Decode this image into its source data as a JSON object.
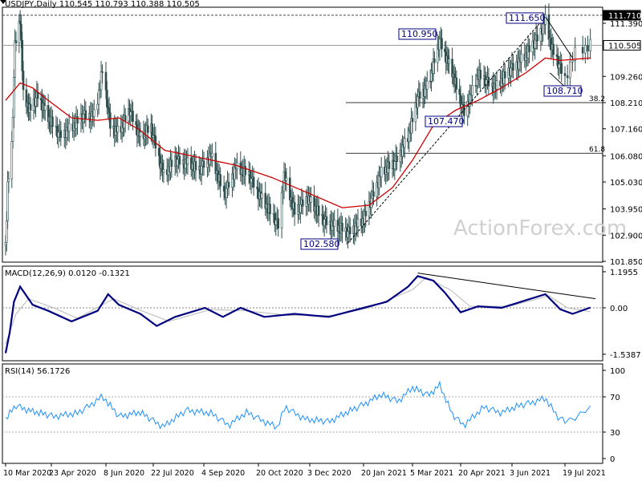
{
  "chart_data": [
    {
      "type": "candlestick",
      "header": "USDJPY,Daily  110.545 110.793 110.388 110.505",
      "symbol": "USDJPY",
      "timeframe": "Daily",
      "ohlc": {
        "open": 110.545,
        "high": 110.793,
        "low": 110.388,
        "close": 110.505
      },
      "current_price_label": "110.505",
      "ylim": [
        101.85,
        112.0
      ],
      "y_ticks": [
        "111.390",
        "110.505",
        "109.260",
        "108.210",
        "107.160",
        "106.080",
        "105.030",
        "103.950",
        "102.900",
        "101.850"
      ],
      "x_ticks": [
        "10 Mar 2020",
        "23 Apr 2020",
        "8 Jun 2020",
        "22 Jul 2020",
        "4 Sep 2020",
        "20 Oct 2020",
        "3 Dec 2020",
        "20 Jan 2021",
        "5 Mar 2021",
        "20 Apr 2021",
        "3 Jun 2021",
        "19 Jul 2021"
      ],
      "x_tick_dates": [
        "2020-03-10",
        "2020-04-23",
        "2020-06-08",
        "2020-07-22",
        "2020-09-04",
        "2020-10-20",
        "2020-12-03",
        "2021-01-20",
        "2021-03-05",
        "2021-04-20",
        "2021-06-03",
        "2021-07-19"
      ],
      "dashed_level": {
        "value": 111.71,
        "label": "111.710"
      },
      "fib_levels": [
        {
          "label": "38.2",
          "value": 108.21
        },
        {
          "label": "61.8",
          "value": 106.18
        }
      ],
      "annotations": [
        {
          "label": "111.650",
          "date": "2021-07-02",
          "value": 111.65
        },
        {
          "label": "110.950",
          "date": "2021-03-31",
          "value": 110.95
        },
        {
          "label": "108.710",
          "date": "2021-07-19",
          "value": 108.71
        },
        {
          "label": "107.470",
          "date": "2021-04-23",
          "value": 107.47
        },
        {
          "label": "102.580",
          "date": "2021-01-06",
          "value": 102.58
        }
      ],
      "close_series": [
        {
          "date": "2020-03-10",
          "value": 102.5
        },
        {
          "date": "2020-03-12",
          "value": 104.8
        },
        {
          "date": "2020-03-16",
          "value": 106.5
        },
        {
          "date": "2020-03-19",
          "value": 110.5
        },
        {
          "date": "2020-03-24",
          "value": 111.6
        },
        {
          "date": "2020-03-27",
          "value": 108.5
        },
        {
          "date": "2020-04-02",
          "value": 107.9
        },
        {
          "date": "2020-04-10",
          "value": 108.5
        },
        {
          "date": "2020-04-20",
          "value": 107.6
        },
        {
          "date": "2020-04-30",
          "value": 106.9
        },
        {
          "date": "2020-05-10",
          "value": 107.2
        },
        {
          "date": "2020-05-20",
          "value": 107.7
        },
        {
          "date": "2020-05-30",
          "value": 107.7
        },
        {
          "date": "2020-06-05",
          "value": 109.5
        },
        {
          "date": "2020-06-12",
          "value": 107.3
        },
        {
          "date": "2020-06-20",
          "value": 107.0
        },
        {
          "date": "2020-06-30",
          "value": 107.9
        },
        {
          "date": "2020-07-10",
          "value": 106.8
        },
        {
          "date": "2020-07-20",
          "value": 107.2
        },
        {
          "date": "2020-07-31",
          "value": 105.3
        },
        {
          "date": "2020-08-10",
          "value": 105.9
        },
        {
          "date": "2020-08-20",
          "value": 105.8
        },
        {
          "date": "2020-08-31",
          "value": 105.5
        },
        {
          "date": "2020-09-10",
          "value": 106.1
        },
        {
          "date": "2020-09-21",
          "value": 104.5
        },
        {
          "date": "2020-10-01",
          "value": 105.6
        },
        {
          "date": "2020-10-12",
          "value": 105.3
        },
        {
          "date": "2020-10-21",
          "value": 104.5
        },
        {
          "date": "2020-11-06",
          "value": 103.3
        },
        {
          "date": "2020-11-11",
          "value": 105.3
        },
        {
          "date": "2020-11-20",
          "value": 103.8
        },
        {
          "date": "2020-12-01",
          "value": 104.4
        },
        {
          "date": "2020-12-15",
          "value": 103.5
        },
        {
          "date": "2021-01-06",
          "value": 103.0
        },
        {
          "date": "2021-01-20",
          "value": 103.5
        },
        {
          "date": "2021-02-05",
          "value": 105.4
        },
        {
          "date": "2021-02-17",
          "value": 105.8
        },
        {
          "date": "2021-03-01",
          "value": 106.8
        },
        {
          "date": "2021-03-10",
          "value": 108.4
        },
        {
          "date": "2021-03-20",
          "value": 108.9
        },
        {
          "date": "2021-03-31",
          "value": 110.7
        },
        {
          "date": "2021-04-12",
          "value": 109.4
        },
        {
          "date": "2021-04-23",
          "value": 107.8
        },
        {
          "date": "2021-05-05",
          "value": 109.3
        },
        {
          "date": "2021-05-20",
          "value": 108.8
        },
        {
          "date": "2021-06-01",
          "value": 109.5
        },
        {
          "date": "2021-06-15",
          "value": 110.1
        },
        {
          "date": "2021-06-25",
          "value": 110.8
        },
        {
          "date": "2021-07-02",
          "value": 111.5
        },
        {
          "date": "2021-07-08",
          "value": 110.3
        },
        {
          "date": "2021-07-19",
          "value": 109.2
        },
        {
          "date": "2021-07-23",
          "value": 110.2
        },
        {
          "date": "2021-07-29",
          "value": 110.5
        }
      ],
      "ma_series": [
        {
          "date": "2020-03-10",
          "value": 108.3
        },
        {
          "date": "2020-03-24",
          "value": 109.0
        },
        {
          "date": "2020-04-05",
          "value": 108.8
        },
        {
          "date": "2020-04-20",
          "value": 108.3
        },
        {
          "date": "2020-05-10",
          "value": 107.6
        },
        {
          "date": "2020-06-01",
          "value": 107.5
        },
        {
          "date": "2020-06-20",
          "value": 107.6
        },
        {
          "date": "2020-07-10",
          "value": 107.1
        },
        {
          "date": "2020-08-01",
          "value": 106.3
        },
        {
          "date": "2020-09-01",
          "value": 106.0
        },
        {
          "date": "2020-10-01",
          "value": 105.7
        },
        {
          "date": "2020-11-01",
          "value": 105.2
        },
        {
          "date": "2020-12-01",
          "value": 104.6
        },
        {
          "date": "2021-01-01",
          "value": 104.0
        },
        {
          "date": "2021-01-25",
          "value": 104.1
        },
        {
          "date": "2021-02-15",
          "value": 104.8
        },
        {
          "date": "2021-03-05",
          "value": 105.9
        },
        {
          "date": "2021-03-25",
          "value": 107.3
        },
        {
          "date": "2021-04-15",
          "value": 107.9
        },
        {
          "date": "2021-05-05",
          "value": 108.3
        },
        {
          "date": "2021-05-25",
          "value": 108.8
        },
        {
          "date": "2021-06-15",
          "value": 109.4
        },
        {
          "date": "2021-07-02",
          "value": 110.0
        },
        {
          "date": "2021-07-15",
          "value": 109.9
        },
        {
          "date": "2021-07-29",
          "value": 110.0
        }
      ],
      "trendlines": [
        {
          "from": {
            "date": "2021-01-06",
            "value": 102.58
          },
          "to": {
            "date": "2021-07-02",
            "value": 111.65
          },
          "style": "dashed"
        },
        {
          "from": {
            "date": "2021-07-02",
            "value": 111.65
          },
          "to": {
            "date": "2021-07-22",
            "value": 110.0
          },
          "style": "solid"
        },
        {
          "from": {
            "date": "2021-07-06",
            "value": 109.4
          },
          "to": {
            "date": "2021-07-20",
            "value": 108.75
          },
          "style": "solid"
        }
      ],
      "watermark": "ActionForex.com",
      "colors": {
        "candle": "#2f4f4f",
        "ma": "#cc0000",
        "label": "#000080"
      }
    },
    {
      "type": "line",
      "title": "MACD(12,26,9) 0.0120 -0.1321",
      "ylim": [
        -1.7,
        1.3
      ],
      "y_ticks": [
        "1.1955",
        "0.00",
        "-1.5387"
      ],
      "macd": [
        {
          "date": "2020-03-10",
          "value": -1.5
        },
        {
          "date": "2020-03-14",
          "value": -0.8
        },
        {
          "date": "2020-03-18",
          "value": 0.2
        },
        {
          "date": "2020-03-24",
          "value": 0.7
        },
        {
          "date": "2020-04-05",
          "value": 0.1
        },
        {
          "date": "2020-04-20",
          "value": -0.1
        },
        {
          "date": "2020-05-10",
          "value": -0.45
        },
        {
          "date": "2020-06-01",
          "value": -0.1
        },
        {
          "date": "2020-06-10",
          "value": 0.45
        },
        {
          "date": "2020-06-20",
          "value": 0.1
        },
        {
          "date": "2020-07-10",
          "value": -0.2
        },
        {
          "date": "2020-07-25",
          "value": -0.6
        },
        {
          "date": "2020-08-10",
          "value": -0.3
        },
        {
          "date": "2020-09-05",
          "value": 0.0
        },
        {
          "date": "2020-09-20",
          "value": -0.3
        },
        {
          "date": "2020-10-05",
          "value": 0.0
        },
        {
          "date": "2020-10-25",
          "value": -0.3
        },
        {
          "date": "2020-11-20",
          "value": -0.2
        },
        {
          "date": "2020-12-20",
          "value": -0.3
        },
        {
          "date": "2021-01-20",
          "value": 0.0
        },
        {
          "date": "2021-02-10",
          "value": 0.2
        },
        {
          "date": "2021-03-01",
          "value": 0.7
        },
        {
          "date": "2021-03-10",
          "value": 1.05
        },
        {
          "date": "2021-03-25",
          "value": 0.9
        },
        {
          "date": "2021-04-05",
          "value": 0.5
        },
        {
          "date": "2021-04-20",
          "value": -0.15
        },
        {
          "date": "2021-05-05",
          "value": 0.05
        },
        {
          "date": "2021-05-25",
          "value": 0.0
        },
        {
          "date": "2021-06-15",
          "value": 0.25
        },
        {
          "date": "2021-07-02",
          "value": 0.45
        },
        {
          "date": "2021-07-15",
          "value": -0.05
        },
        {
          "date": "2021-07-22",
          "value": -0.2
        },
        {
          "date": "2021-07-29",
          "value": 0.01
        }
      ],
      "signal": [
        {
          "date": "2020-03-10",
          "value": -1.2
        },
        {
          "date": "2020-03-20",
          "value": -0.2
        },
        {
          "date": "2020-04-01",
          "value": 0.3
        },
        {
          "date": "2020-04-25",
          "value": 0.0
        },
        {
          "date": "2020-05-15",
          "value": -0.35
        },
        {
          "date": "2020-06-15",
          "value": 0.3
        },
        {
          "date": "2020-07-15",
          "value": -0.15
        },
        {
          "date": "2020-08-05",
          "value": -0.45
        },
        {
          "date": "2020-09-10",
          "value": -0.05
        },
        {
          "date": "2020-10-10",
          "value": -0.1
        },
        {
          "date": "2020-11-15",
          "value": -0.25
        },
        {
          "date": "2020-12-25",
          "value": -0.25
        },
        {
          "date": "2021-01-25",
          "value": 0.0
        },
        {
          "date": "2021-03-05",
          "value": 0.6
        },
        {
          "date": "2021-03-18",
          "value": 1.0
        },
        {
          "date": "2021-04-10",
          "value": 0.6
        },
        {
          "date": "2021-04-28",
          "value": 0.05
        },
        {
          "date": "2021-06-01",
          "value": 0.05
        },
        {
          "date": "2021-07-05",
          "value": 0.4
        },
        {
          "date": "2021-07-20",
          "value": 0.0
        },
        {
          "date": "2021-07-29",
          "value": -0.13
        }
      ],
      "trendline": {
        "from": {
          "date": "2021-03-10",
          "value": 1.15
        },
        "to": {
          "date": "2021-07-31",
          "value": 0.3
        }
      }
    },
    {
      "type": "line",
      "title": "RSI(14) 56.1726",
      "ylim": [
        0,
        100
      ],
      "y_ticks": [
        "100",
        "70",
        "30",
        "0"
      ],
      "guide_levels": [
        70,
        30
      ],
      "rsi": [
        {
          "date": "2020-03-10",
          "value": 45
        },
        {
          "date": "2020-03-20",
          "value": 60
        },
        {
          "date": "2020-04-05",
          "value": 53
        },
        {
          "date": "2020-04-25",
          "value": 48
        },
        {
          "date": "2020-05-15",
          "value": 51
        },
        {
          "date": "2020-06-05",
          "value": 70
        },
        {
          "date": "2020-06-20",
          "value": 48
        },
        {
          "date": "2020-07-10",
          "value": 52
        },
        {
          "date": "2020-07-31",
          "value": 36
        },
        {
          "date": "2020-08-20",
          "value": 55
        },
        {
          "date": "2020-09-10",
          "value": 51
        },
        {
          "date": "2020-09-25",
          "value": 38
        },
        {
          "date": "2020-10-10",
          "value": 52
        },
        {
          "date": "2020-11-05",
          "value": 35
        },
        {
          "date": "2020-11-12",
          "value": 58
        },
        {
          "date": "2020-11-30",
          "value": 44
        },
        {
          "date": "2020-12-20",
          "value": 42
        },
        {
          "date": "2021-01-10",
          "value": 55
        },
        {
          "date": "2021-02-05",
          "value": 72
        },
        {
          "date": "2021-02-20",
          "value": 65
        },
        {
          "date": "2021-03-05",
          "value": 80
        },
        {
          "date": "2021-03-20",
          "value": 72
        },
        {
          "date": "2021-03-31",
          "value": 83
        },
        {
          "date": "2021-04-12",
          "value": 50
        },
        {
          "date": "2021-04-23",
          "value": 38
        },
        {
          "date": "2021-05-10",
          "value": 58
        },
        {
          "date": "2021-05-25",
          "value": 52
        },
        {
          "date": "2021-06-10",
          "value": 60
        },
        {
          "date": "2021-07-02",
          "value": 68
        },
        {
          "date": "2021-07-12",
          "value": 48
        },
        {
          "date": "2021-07-19",
          "value": 42
        },
        {
          "date": "2021-07-29",
          "value": 56
        }
      ],
      "colors": {
        "rsi": "#1e90ff",
        "macd": "#000080",
        "signal": "#c0c0c0"
      }
    }
  ]
}
